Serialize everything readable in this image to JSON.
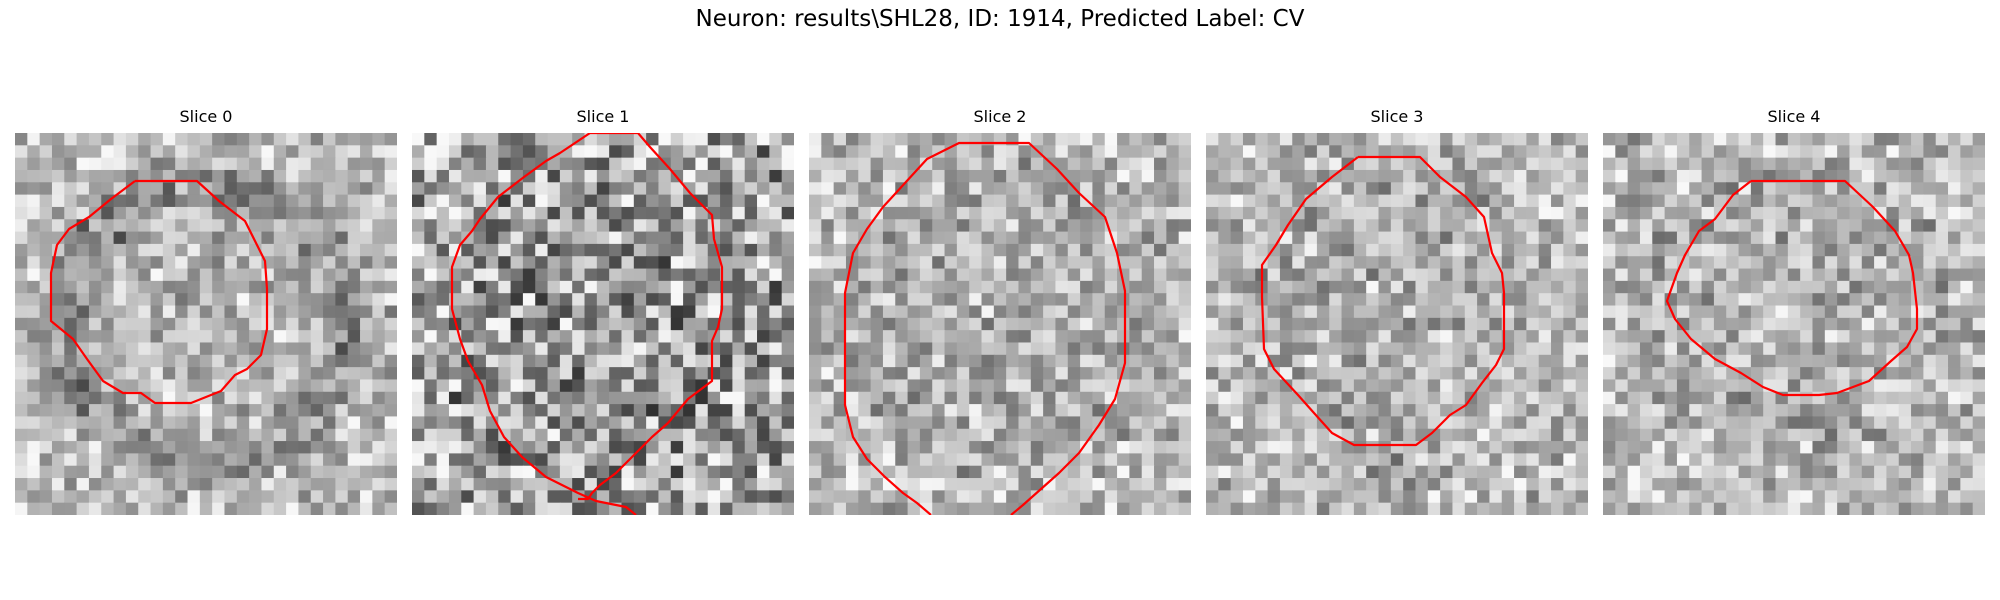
{
  "figure": {
    "title": "Neuron: results\\SHL28, ID: 1914, Predicted Label: CV"
  },
  "panels": [
    {
      "title": "Slice 0",
      "seed": 11,
      "contrast": "darker-ring",
      "contour": "closed"
    },
    {
      "title": "Slice 1",
      "seed": 23,
      "contrast": "high",
      "contour": "open-bottom"
    },
    {
      "title": "Slice 2",
      "seed": 37,
      "contrast": "medium",
      "contour": "open-bottom"
    },
    {
      "title": "Slice 3",
      "seed": 53,
      "contrast": "medium",
      "contour": "closed"
    },
    {
      "title": "Slice 4",
      "seed": 71,
      "contrast": "medium",
      "contour": "closed"
    }
  ],
  "colors": {
    "contour": "#ff0000",
    "background": "#ffffff"
  }
}
